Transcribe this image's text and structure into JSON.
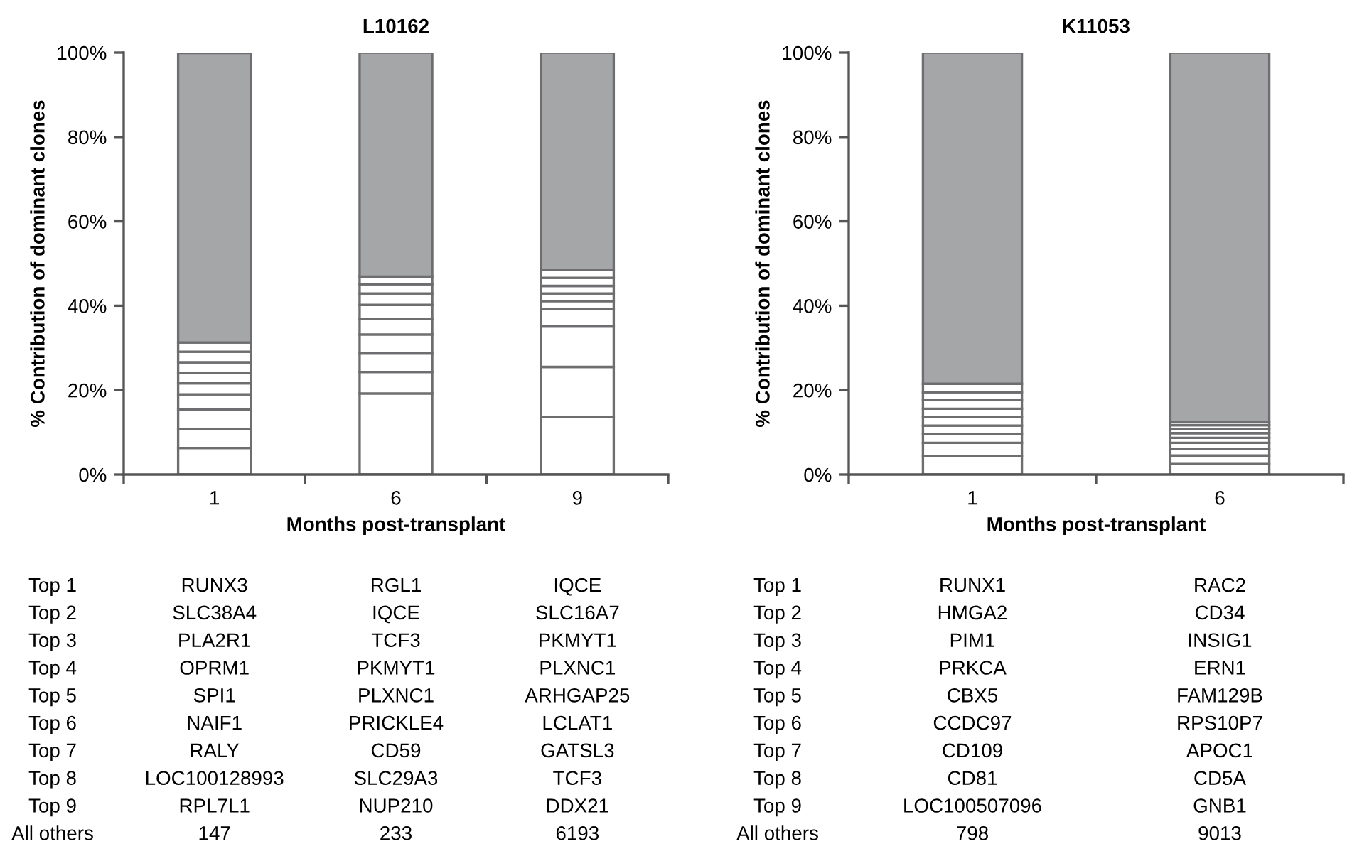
{
  "chart_data": [
    {
      "type": "bar",
      "title": "L10162",
      "xlabel": "Months post-transplant",
      "ylabel": "% Contribution of dominant clones",
      "categories": [
        "1",
        "6",
        "9"
      ],
      "stacked": true,
      "ylim": [
        0,
        100
      ],
      "yticks": [
        {
          "value": 0,
          "label": "0%"
        },
        {
          "value": 20,
          "label": "20%"
        },
        {
          "value": 40,
          "label": "40%"
        },
        {
          "value": 60,
          "label": "60%"
        },
        {
          "value": 80,
          "label": "80%"
        },
        {
          "value": 100,
          "label": "100%"
        }
      ],
      "grid": false,
      "legend": false,
      "series": [
        {
          "color": "#ffffff",
          "values": [
            6.3,
            19.2,
            13.7
          ]
        },
        {
          "color": "#ffffff",
          "values": [
            4.5,
            5.1,
            11.8
          ]
        },
        {
          "color": "#ffffff",
          "values": [
            4.6,
            4.4,
            9.6
          ]
        },
        {
          "color": "#ffffff",
          "values": [
            3.6,
            4.5,
            4.1
          ]
        },
        {
          "color": "#ffffff",
          "values": [
            2.6,
            3.6,
            1.9
          ]
        },
        {
          "color": "#ffffff",
          "values": [
            2.5,
            3.4,
            1.8
          ]
        },
        {
          "color": "#ffffff",
          "values": [
            2.5,
            2.7,
            1.8
          ]
        },
        {
          "color": "#ffffff",
          "values": [
            2.5,
            2.2,
            1.9
          ]
        },
        {
          "color": "#ffffff",
          "values": [
            2.2,
            1.8,
            1.9
          ]
        },
        {
          "color": "#a5a6a8",
          "values": [
            68.6,
            53.1,
            51.5
          ]
        }
      ],
      "annotations": [
        "Top 1",
        "RUNX3",
        "RGL1",
        "IQCE",
        "Top 2",
        "SLC38A4",
        "IQCE",
        "SLC16A7",
        "Top 3",
        "PLA2R1",
        "TCF3",
        "PKMYT1",
        "Top 4",
        "OPRM1",
        "PKMYT1",
        "PLXNC1",
        "Top 5",
        "SPI1",
        "PLXNC1",
        "ARHGAP25",
        "Top 6",
        "NAIF1",
        "PRICKLE4",
        "LCLAT1",
        "Top 7",
        "RALY",
        "CD59",
        "GATSL3",
        "Top 8",
        "LOC100128993",
        "SLC29A3",
        "TCF3",
        "Top 9",
        "RPL7L1",
        "NUP210",
        "DDX21",
        "All others",
        "147",
        "233",
        "6193"
      ]
    },
    {
      "type": "bar",
      "title": "K11053",
      "xlabel": "Months post-transplant",
      "ylabel": "% Contribution of dominant clones",
      "categories": [
        "1",
        "6"
      ],
      "stacked": true,
      "ylim": [
        0,
        100
      ],
      "yticks": [
        {
          "value": 0,
          "label": "0%"
        },
        {
          "value": 20,
          "label": "20%"
        },
        {
          "value": 40,
          "label": "40%"
        },
        {
          "value": 60,
          "label": "60%"
        },
        {
          "value": 80,
          "label": "80%"
        },
        {
          "value": 100,
          "label": "100%"
        }
      ],
      "grid": false,
      "legend": false,
      "series": [
        {
          "color": "#ffffff",
          "values": [
            4.3,
            2.5
          ]
        },
        {
          "color": "#ffffff",
          "values": [
            3.2,
            2.0
          ]
        },
        {
          "color": "#ffffff",
          "values": [
            2.1,
            1.6
          ]
        },
        {
          "color": "#ffffff",
          "values": [
            2.0,
            1.4
          ]
        },
        {
          "color": "#ffffff",
          "values": [
            2.0,
            1.2
          ]
        },
        {
          "color": "#ffffff",
          "values": [
            2.0,
            1.1
          ]
        },
        {
          "color": "#ffffff",
          "values": [
            2.0,
            1.0
          ]
        },
        {
          "color": "#ffffff",
          "values": [
            1.9,
            0.9
          ]
        },
        {
          "color": "#ffffff",
          "values": [
            2.0,
            0.8
          ]
        },
        {
          "color": "#a5a6a8",
          "values": [
            78.5,
            87.5
          ]
        }
      ],
      "annotations": [
        "Top 1",
        "RUNX1",
        "RAC2",
        "Top 2",
        "HMGA2",
        "CD34",
        "Top 3",
        "PIM1",
        "INSIG1",
        "Top 4",
        "PRKCA",
        "ERN1",
        "Top 5",
        "CBX5",
        "FAM129B",
        "Top 6",
        "CCDC97",
        "RPS10P7",
        "Top 7",
        "CD109",
        "APOC1",
        "Top 8",
        "CD81",
        "CD5A",
        "Top 9",
        "LOC100507096",
        "GNB1",
        "All others",
        "798",
        "9013"
      ]
    }
  ]
}
